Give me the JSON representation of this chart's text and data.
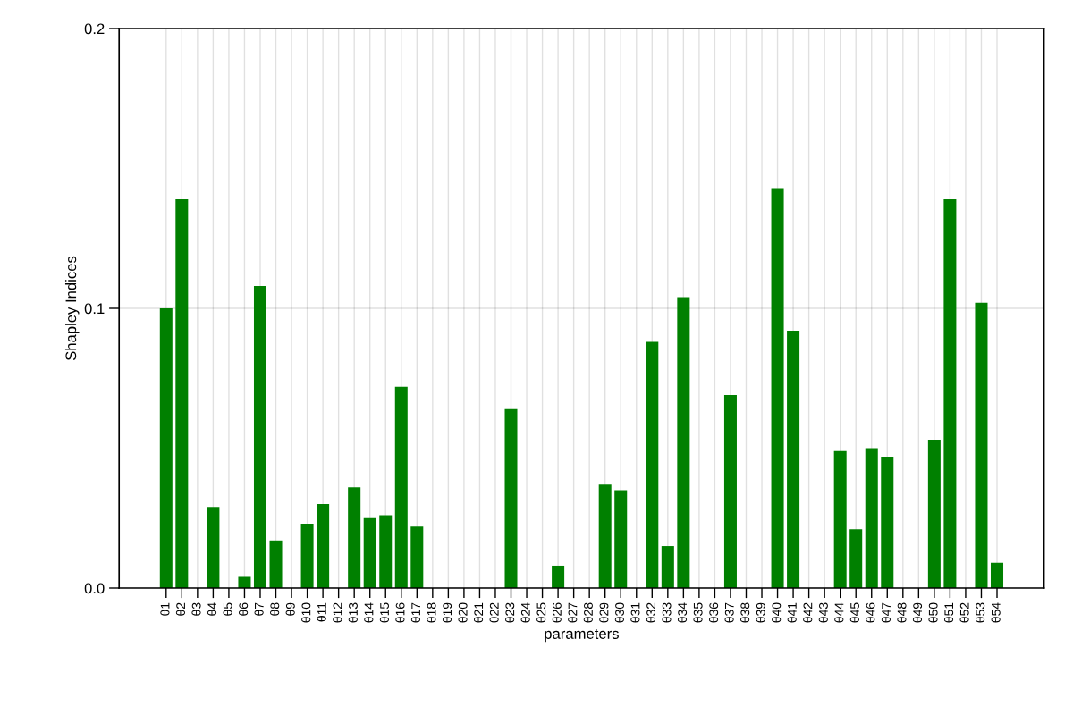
{
  "chart_data": {
    "type": "bar",
    "xlabel": "parameters",
    "ylabel": "Shapley Indices",
    "categories": [
      "θ1",
      "θ2",
      "θ3",
      "θ4",
      "θ5",
      "θ6",
      "θ7",
      "θ8",
      "θ9",
      "θ10",
      "θ11",
      "θ12",
      "θ13",
      "θ14",
      "θ15",
      "θ16",
      "θ17",
      "θ18",
      "θ19",
      "θ20",
      "θ21",
      "θ22",
      "θ23",
      "θ24",
      "θ25",
      "θ26",
      "θ27",
      "θ28",
      "θ29",
      "θ30",
      "θ31",
      "θ32",
      "θ33",
      "θ34",
      "θ35",
      "θ36",
      "θ37",
      "θ38",
      "θ39",
      "θ40",
      "θ41",
      "θ42",
      "θ43",
      "θ44",
      "θ45",
      "θ46",
      "θ47",
      "θ48",
      "θ49",
      "θ50",
      "θ51",
      "θ52",
      "θ53",
      "θ54"
    ],
    "values": [
      0.1,
      0.139,
      0,
      0.029,
      0,
      0.004,
      0.108,
      0.017,
      0,
      0.023,
      0.03,
      0,
      0.036,
      0.025,
      0.026,
      0.072,
      0.022,
      0,
      0,
      0,
      0,
      0,
      0.064,
      0,
      0,
      0.008,
      0,
      0,
      0.037,
      0.035,
      0,
      0.088,
      0.015,
      0.104,
      0,
      0,
      0.069,
      0,
      0,
      0.143,
      0.092,
      0,
      0,
      0.049,
      0.021,
      0.05,
      0.047,
      0,
      0,
      0.053,
      0.139,
      0,
      0.102,
      0.009
    ],
    "color": "#008000",
    "ylim": [
      0,
      0.2
    ],
    "yticks": [
      {
        "value": 0,
        "label": "0.0"
      },
      0.1,
      0.2
    ],
    "grid": true
  }
}
